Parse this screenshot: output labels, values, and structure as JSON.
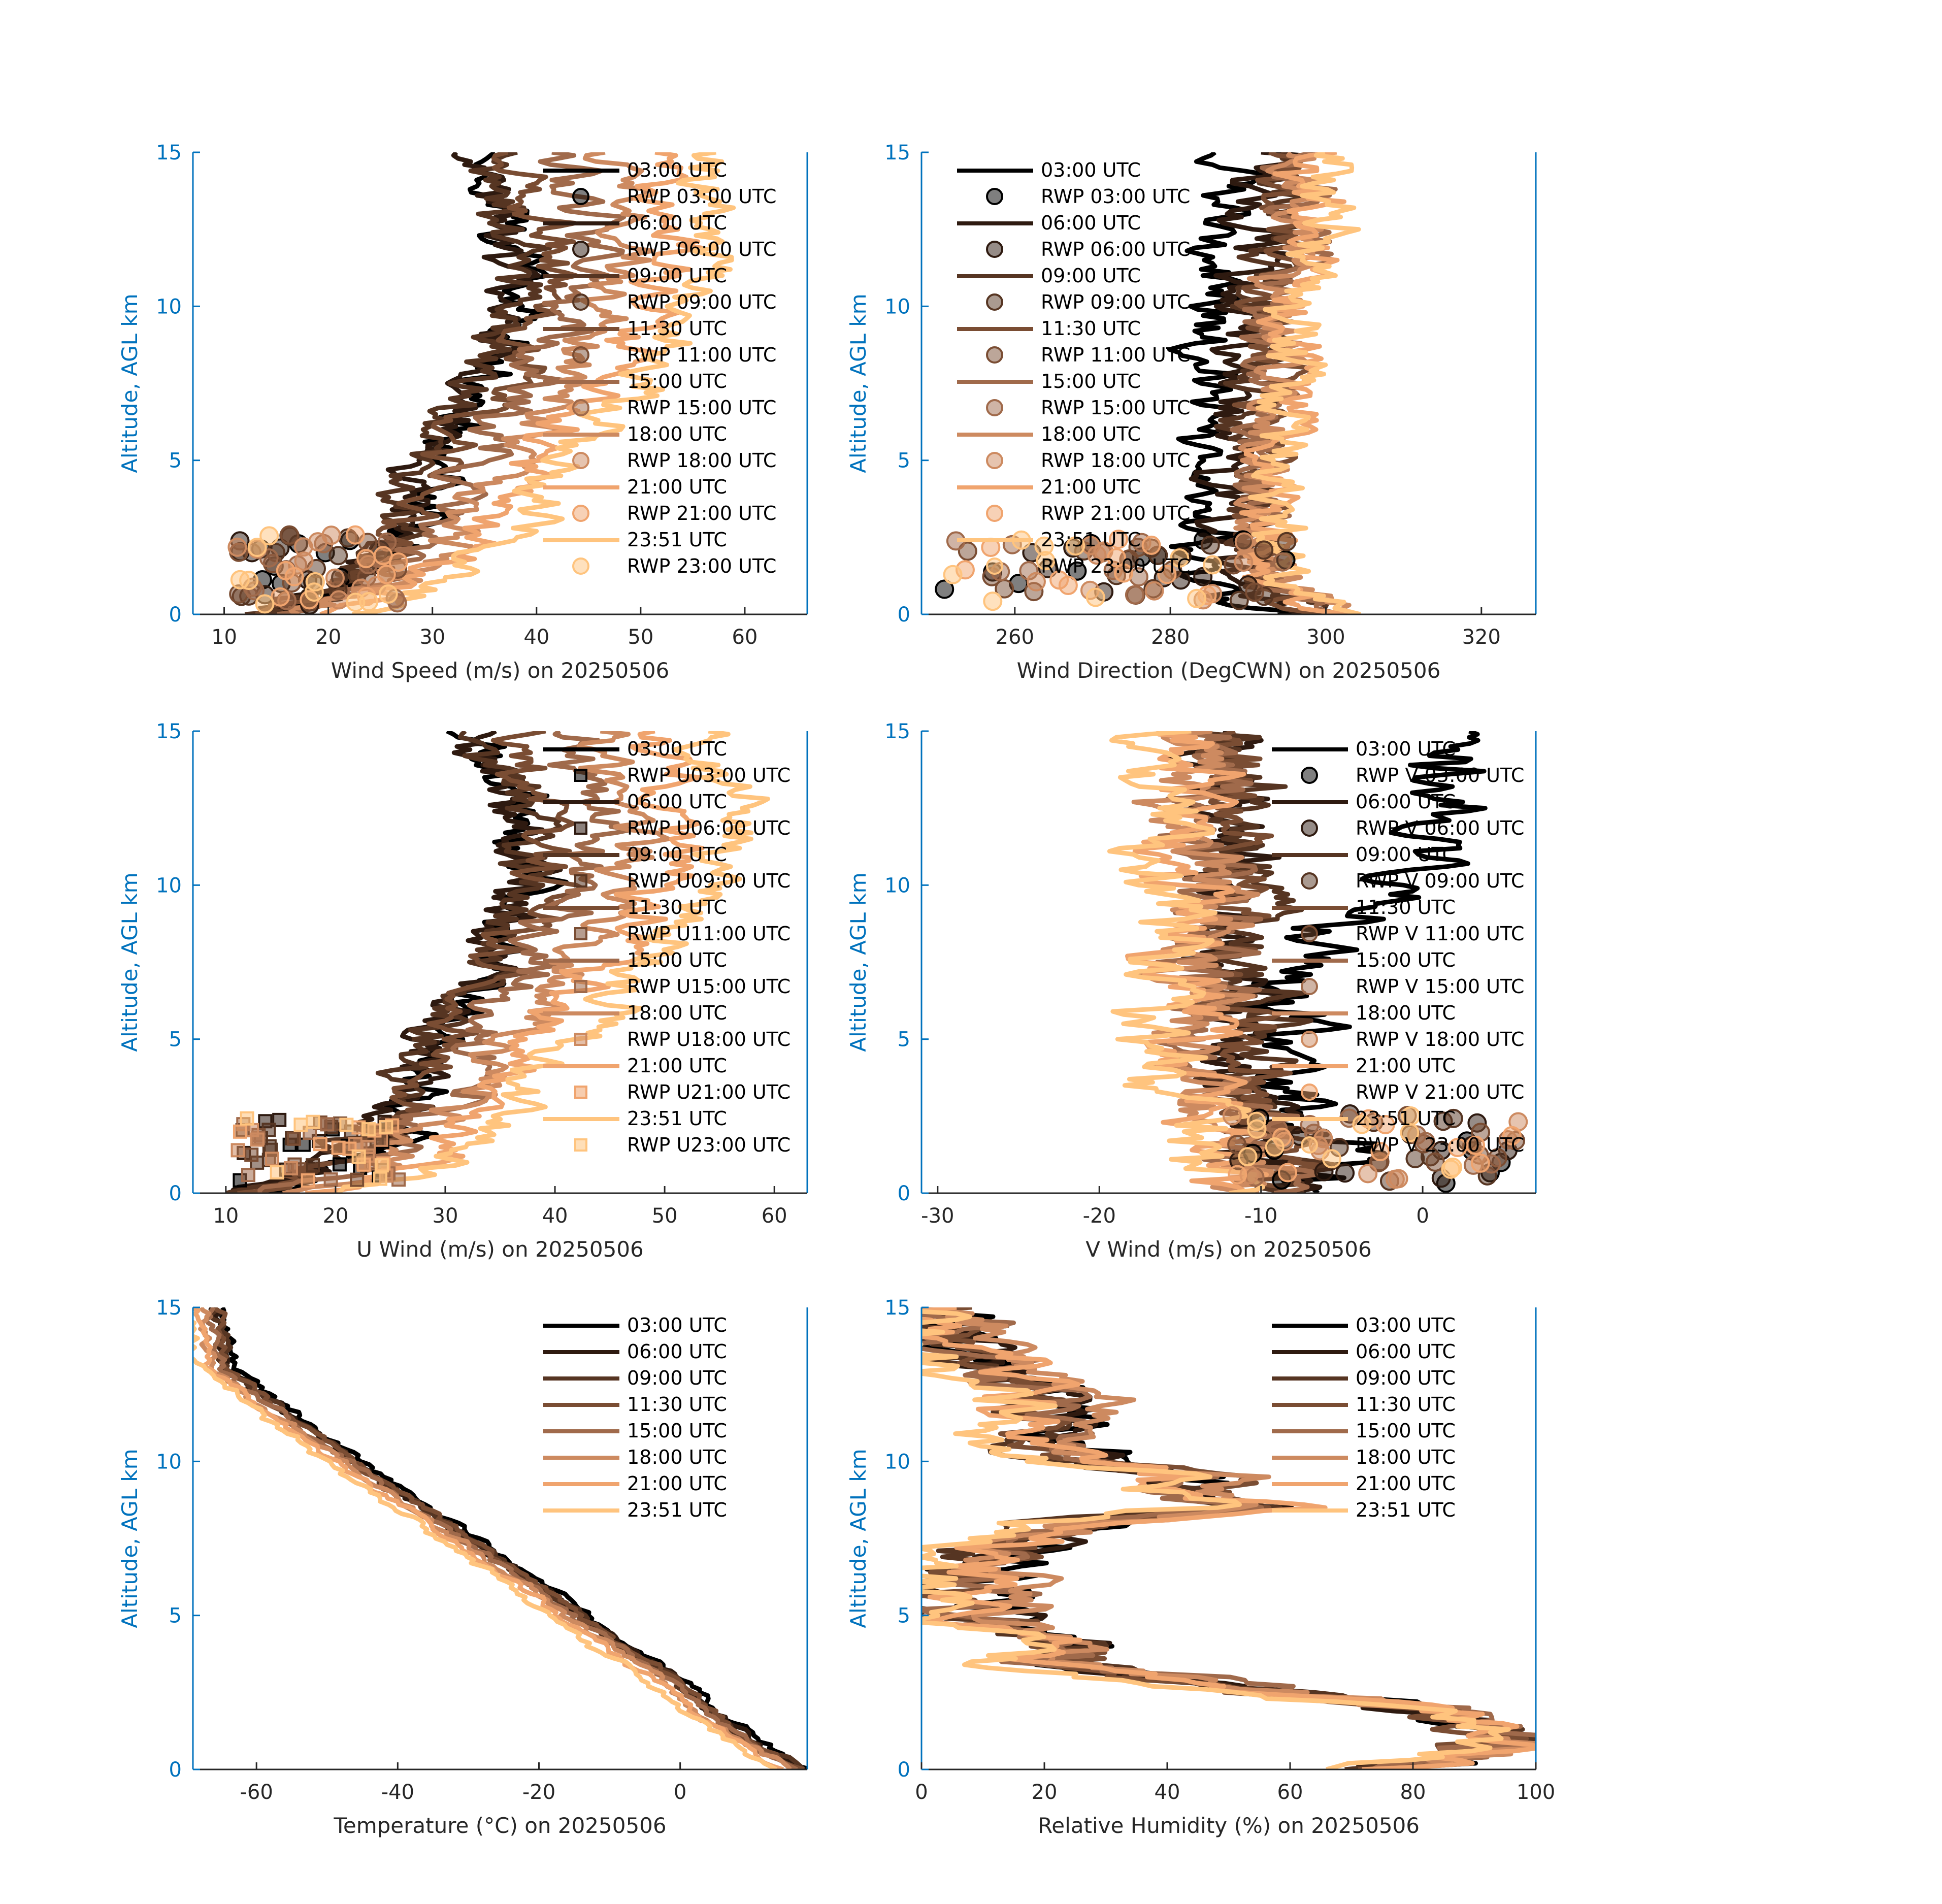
{
  "figure": {
    "date": "20250506"
  },
  "colors": {
    "axis_left": "#0072BD",
    "axis_bottom": "#262626",
    "palette": [
      "#000000",
      "#2e1a10",
      "#563522",
      "#7a4d33",
      "#a06a4b",
      "#cd8a60",
      "#f0a46e",
      "#ffc47e"
    ]
  },
  "chart_data": [
    {
      "id": "wind-speed",
      "type": "line",
      "xlabel": "Wind Speed (m/s) on 20250506",
      "ylabel": "Altitude, AGL km",
      "xlim": [
        7,
        66
      ],
      "ylim": [
        0,
        15
      ],
      "xticks": [
        10,
        20,
        30,
        40,
        50,
        60
      ],
      "yticks": [
        0,
        5,
        10,
        15
      ],
      "legend_position": "top-right",
      "rwp_marker": "circle",
      "profile": {
        "z": [
          0,
          0.5,
          1,
          1.5,
          2,
          2.5,
          3,
          4,
          5,
          6,
          7,
          8,
          9,
          10,
          11,
          12,
          13,
          14,
          15
        ],
        "base": [
          14,
          18,
          21,
          23,
          25,
          26,
          27,
          28,
          29,
          31,
          33,
          34,
          35,
          36,
          37,
          37,
          35,
          33,
          32
        ],
        "shift_top": 15,
        "noise": 2.2
      },
      "series": [
        {
          "name": "03:00 UTC",
          "rwp": "RWP 03:00 UTC",
          "shift": 2
        },
        {
          "name": "06:00 UTC",
          "rwp": "RWP 06:00 UTC",
          "shift": 0
        },
        {
          "name": "09:00 UTC",
          "rwp": "RWP 09:00 UTC",
          "shift": -1
        },
        {
          "name": "11:30 UTC",
          "rwp": "RWP 11:00 UTC",
          "shift": 0
        },
        {
          "name": "15:00 UTC",
          "rwp": "RWP 15:00 UTC",
          "shift": 2
        },
        {
          "name": "18:00 UTC",
          "rwp": "RWP 18:00 UTC",
          "shift": 4
        },
        {
          "name": "21:00 UTC",
          "rwp": "RWP 21:00 UTC",
          "shift": 6
        },
        {
          "name": "23:51 UTC",
          "rwp": "RWP 23:00 UTC",
          "shift": 9
        }
      ],
      "rwp_points": {
        "x_range": [
          11,
          27
        ],
        "z_range": [
          0.3,
          2.6
        ],
        "count": 10
      }
    },
    {
      "id": "wind-direction",
      "type": "line",
      "xlabel": "Wind Direction (DegCWN) on 20250506",
      "ylabel": "Altitude, AGL km",
      "xlim": [
        248,
        327
      ],
      "ylim": [
        0,
        15
      ],
      "xticks": [
        260,
        280,
        300,
        320
      ],
      "yticks": [
        0,
        5,
        10,
        15
      ],
      "legend_position": "top-left",
      "rwp_marker": "circle",
      "profile": {
        "z": [
          0,
          0.5,
          1,
          2,
          3,
          4,
          5,
          6,
          7,
          8,
          9,
          10,
          11,
          12,
          13,
          14,
          15
        ],
        "base": [
          300,
          296,
          292,
          291,
          291,
          291,
          291,
          291,
          291,
          292,
          292,
          292,
          293,
          294,
          294,
          294,
          294
        ],
        "shift_top": 3,
        "noise": 3.2
      },
      "series": [
        {
          "name": "03:00 UTC",
          "rwp": "RWP 03:00 UTC",
          "shift": -7
        },
        {
          "name": "06:00 UTC",
          "rwp": "RWP 06:00 UTC",
          "shift": -3
        },
        {
          "name": "09:00 UTC",
          "rwp": "RWP 09:00 UTC",
          "shift": -1
        },
        {
          "name": "11:30 UTC",
          "rwp": "RWP 11:00 UTC",
          "shift": 0
        },
        {
          "name": "15:00 UTC",
          "rwp": "RWP 15:00 UTC",
          "shift": 1
        },
        {
          "name": "18:00 UTC",
          "rwp": "RWP 18:00 UTC",
          "shift": 1
        },
        {
          "name": "21:00 UTC",
          "rwp": "RWP 21:00 UTC",
          "shift": 2
        },
        {
          "name": "23:51 UTC",
          "rwp": "RWP 23:00 UTC",
          "shift": 3
        }
      ],
      "rwp_points": {
        "x_range": [
          250,
          296
        ],
        "z_range": [
          0.4,
          2.5
        ],
        "count": 10
      }
    },
    {
      "id": "u-wind",
      "type": "line",
      "xlabel": "U Wind (m/s) on 20250506",
      "ylabel": "Altitude, AGL km",
      "xlim": [
        7,
        63
      ],
      "ylim": [
        0,
        15
      ],
      "xticks": [
        10,
        20,
        30,
        40,
        50,
        60
      ],
      "yticks": [
        0,
        5,
        10,
        15
      ],
      "legend_position": "top-right",
      "rwp_marker": "square",
      "profile": {
        "z": [
          0,
          0.5,
          1,
          1.5,
          2,
          2.5,
          3,
          4,
          5,
          6,
          7,
          8,
          9,
          10,
          11,
          12,
          13,
          14,
          15
        ],
        "base": [
          13,
          17,
          20,
          22,
          24,
          25,
          26,
          27,
          28,
          30,
          32,
          33,
          34,
          35,
          36,
          36,
          34,
          32,
          31
        ],
        "shift_top": 14,
        "noise": 2.2
      },
      "series": [
        {
          "name": "03:00 UTC",
          "rwp": "RWP U03:00 UTC",
          "shift": 2
        },
        {
          "name": "06:00 UTC",
          "rwp": "RWP U06:00 UTC",
          "shift": 0
        },
        {
          "name": "09:00 UTC",
          "rwp": "RWP U09:00 UTC",
          "shift": -1
        },
        {
          "name": "11:30 UTC",
          "rwp": "RWP U11:00 UTC",
          "shift": 0
        },
        {
          "name": "15:00 UTC",
          "rwp": "RWP U15:00 UTC",
          "shift": 2
        },
        {
          "name": "18:00 UTC",
          "rwp": "RWP U18:00 UTC",
          "shift": 4
        },
        {
          "name": "21:00 UTC",
          "rwp": "RWP U21:00 UTC",
          "shift": 6
        },
        {
          "name": "23:51 UTC",
          "rwp": "RWP U23:00 UTC",
          "shift": 9
        }
      ],
      "rwp_points": {
        "x_range": [
          11,
          26
        ],
        "z_range": [
          0.4,
          2.5
        ],
        "count": 10
      }
    },
    {
      "id": "v-wind",
      "type": "line",
      "xlabel": "V Wind (m/s) on 20250506",
      "ylabel": "Altitude, AGL km",
      "xlim": [
        -31,
        7
      ],
      "ylim": [
        0,
        15
      ],
      "xticks": [
        -30,
        -20,
        -10,
        0
      ],
      "yticks": [
        0,
        5,
        10,
        15
      ],
      "legend_position": "right",
      "rwp_marker": "circle",
      "profile": {
        "z": [
          0,
          0.5,
          1,
          2,
          3,
          4,
          5,
          6,
          7,
          8,
          9,
          10,
          11,
          12,
          13,
          14,
          15
        ],
        "base": [
          -8,
          -9,
          -9,
          -10,
          -11,
          -12,
          -12,
          -12,
          -12,
          -12,
          -12,
          -12,
          -12,
          -12,
          -12,
          -12,
          -12
        ],
        "shift_top": 0,
        "noise": 2.4
      },
      "series": [
        {
          "name": "03:00 UTC",
          "rwp": "RWP V 03:00 UTC",
          "shift": 0
        },
        {
          "name": "06:00 UTC",
          "rwp": "RWP V 06:00 UTC",
          "shift": 0
        },
        {
          "name": "09:00 UTC",
          "rwp": "RWP V 09:00 UTC",
          "shift": 1
        },
        {
          "name": "11:30 UTC",
          "rwp": "RWP V 11:00 UTC",
          "shift": 0
        },
        {
          "name": "15:00 UTC",
          "rwp": "RWP V 15:00 UTC",
          "shift": -1
        },
        {
          "name": "18:00 UTC",
          "rwp": "RWP V 18:00 UTC",
          "shift": -2
        },
        {
          "name": "21:00 UTC",
          "rwp": "RWP V 21:00 UTC",
          "shift": -3
        },
        {
          "name": "23:51 UTC",
          "rwp": "RWP V 23:00 UTC",
          "shift": -4
        }
      ],
      "special_series": {
        "index": 0,
        "z": [
          0,
          1,
          2,
          3,
          5,
          7,
          8,
          9,
          10,
          11,
          12,
          13,
          14,
          15
        ],
        "x": [
          -6,
          -5,
          -7,
          -8,
          -8,
          -8,
          -7,
          -5,
          -3,
          0,
          2,
          2,
          2,
          -1
        ]
      },
      "rwp_points": {
        "x_range": [
          -12,
          6
        ],
        "z_range": [
          0.3,
          2.6
        ],
        "count": 10
      }
    },
    {
      "id": "temperature",
      "type": "line",
      "xlabel": "Temperature (°C) on 20250506",
      "ylabel": "Altitude, AGL km",
      "xlim": [
        -69,
        18
      ],
      "ylim": [
        0,
        15
      ],
      "xticks": [
        -60,
        -40,
        -20,
        0
      ],
      "yticks": [
        0,
        5,
        10,
        15
      ],
      "legend_position": "top-right",
      "rwp_marker": "none",
      "profile": {
        "z": [
          0,
          1,
          2,
          3,
          4,
          5,
          6,
          7,
          8,
          9,
          10,
          11,
          12,
          13,
          14,
          15
        ],
        "base": [
          17,
          10,
          4,
          -1,
          -8,
          -14,
          -20,
          -27,
          -33,
          -40,
          -46,
          -52,
          -58,
          -64,
          -65,
          -66
        ],
        "shift_top": 0,
        "noise": 0.8
      },
      "series": [
        {
          "name": "03:00 UTC",
          "shift": 1
        },
        {
          "name": "06:00 UTC",
          "shift": 0
        },
        {
          "name": "09:00 UTC",
          "shift": 0
        },
        {
          "name": "11:30 UTC",
          "shift": 0
        },
        {
          "name": "15:00 UTC",
          "shift": -1
        },
        {
          "name": "18:00 UTC",
          "shift": -2
        },
        {
          "name": "21:00 UTC",
          "shift": -3
        },
        {
          "name": "23:51 UTC",
          "shift": -4
        }
      ]
    },
    {
      "id": "relative-humidity",
      "type": "line",
      "xlabel": "Relative Humidity (%) on 20250506",
      "ylabel": "Altitude, AGL km",
      "xlim": [
        0,
        100
      ],
      "ylim": [
        0,
        15
      ],
      "xticks": [
        0,
        20,
        40,
        60,
        80,
        100
      ],
      "yticks": [
        0,
        5,
        10,
        15
      ],
      "legend_position": "top-right",
      "rwp_marker": "none",
      "profile": {
        "z": [
          0,
          0.5,
          1,
          1.5,
          2,
          2.5,
          3,
          3.5,
          4,
          4.5,
          5,
          6,
          7,
          8,
          8.5,
          9,
          9.5,
          10,
          11,
          12,
          13,
          14,
          15
        ],
        "base": [
          75,
          92,
          95,
          90,
          80,
          55,
          40,
          20,
          25,
          15,
          8,
          8,
          10,
          25,
          55,
          40,
          45,
          25,
          20,
          18,
          12,
          5,
          4
        ],
        "shift_top": 0,
        "noise": 7
      },
      "series": [
        {
          "name": "03:00 UTC",
          "shift": 2
        },
        {
          "name": "06:00 UTC",
          "shift": 0
        },
        {
          "name": "09:00 UTC",
          "shift": -2
        },
        {
          "name": "11:30 UTC",
          "shift": 0
        },
        {
          "name": "15:00 UTC",
          "shift": 2
        },
        {
          "name": "18:00 UTC",
          "shift": 4
        },
        {
          "name": "21:00 UTC",
          "shift": 0
        },
        {
          "name": "23:51 UTC",
          "shift": -6
        }
      ]
    }
  ]
}
